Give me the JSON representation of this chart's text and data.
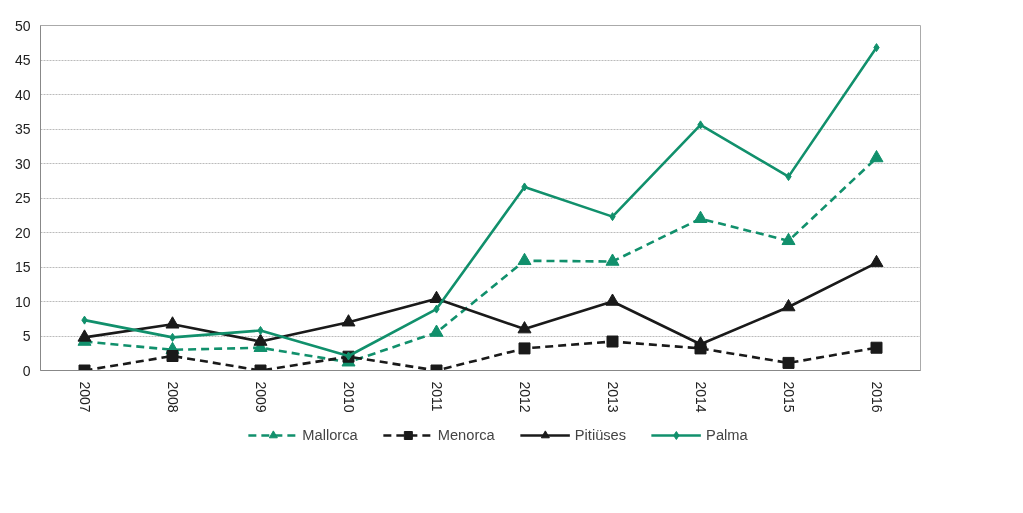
{
  "chart_data": {
    "type": "line",
    "categories": [
      "2007",
      "2008",
      "2009",
      "2010",
      "2011",
      "2012",
      "2013",
      "2014",
      "2015",
      "2016"
    ],
    "ylim": [
      0,
      50
    ],
    "yticks": [
      0,
      5,
      10,
      15,
      20,
      25,
      30,
      35,
      40,
      45,
      50
    ],
    "grid": "y",
    "legend": "bottom",
    "series": [
      {
        "name": "Mallorca",
        "color": "#11906c",
        "marker": "triangle",
        "line_style": "dashed",
        "values": [
          4.2,
          3.0,
          3.3,
          1.2,
          5.5,
          15.9,
          15.8,
          22.0,
          18.8,
          30.8
        ]
      },
      {
        "name": "Menorca",
        "color": "#1a1a1a",
        "marker": "square",
        "line_style": "dashed",
        "values": [
          0,
          2.1,
          0,
          2.0,
          0,
          3.2,
          4.2,
          3.2,
          1.1,
          3.3
        ]
      },
      {
        "name": "Pitiüses",
        "color": "#1a1a1a",
        "marker": "triangle",
        "line_style": "solid",
        "values": [
          4.8,
          6.7,
          4.2,
          7.0,
          10.4,
          6.0,
          10.0,
          3.8,
          9.2,
          15.6
        ]
      },
      {
        "name": "Palma",
        "color": "#11906c",
        "marker": "diamond",
        "line_style": "solid",
        "values": [
          7.3,
          4.8,
          5.8,
          2.1,
          8.9,
          26.6,
          22.3,
          35.6,
          28.1,
          46.8
        ]
      }
    ]
  }
}
